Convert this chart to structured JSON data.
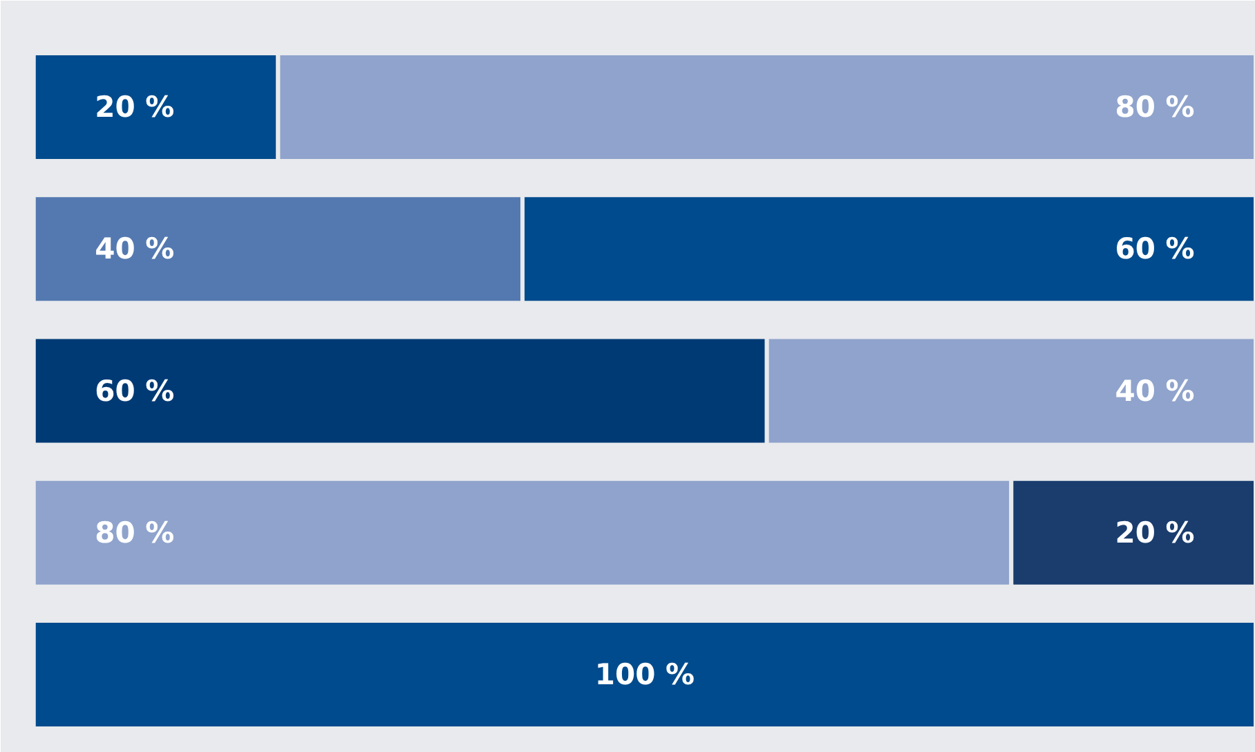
{
  "chart_data": {
    "type": "bar",
    "orientation": "horizontal",
    "stacked": true,
    "categories": [
      null,
      null,
      null,
      null,
      null
    ],
    "series": [
      {
        "colors": [
          "#004b8d",
          "#5479b0",
          "#003a75",
          "#8fa3cc",
          "#004b8d"
        ],
        "values": [
          20,
          40,
          60,
          80,
          100
        ],
        "value_labels": [
          "20 %",
          "40 %",
          "60 %",
          "80 %",
          "100 %"
        ]
      },
      {
        "colors": [
          "#8fa3cc",
          "#004b8d",
          "#8fa3cc",
          "#1a3d6e",
          null
        ],
        "values": [
          80,
          60,
          40,
          20,
          null
        ],
        "value_labels": [
          "80 %",
          "60 %",
          "40 %",
          "20 %",
          null
        ]
      }
    ],
    "grid": false
  }
}
